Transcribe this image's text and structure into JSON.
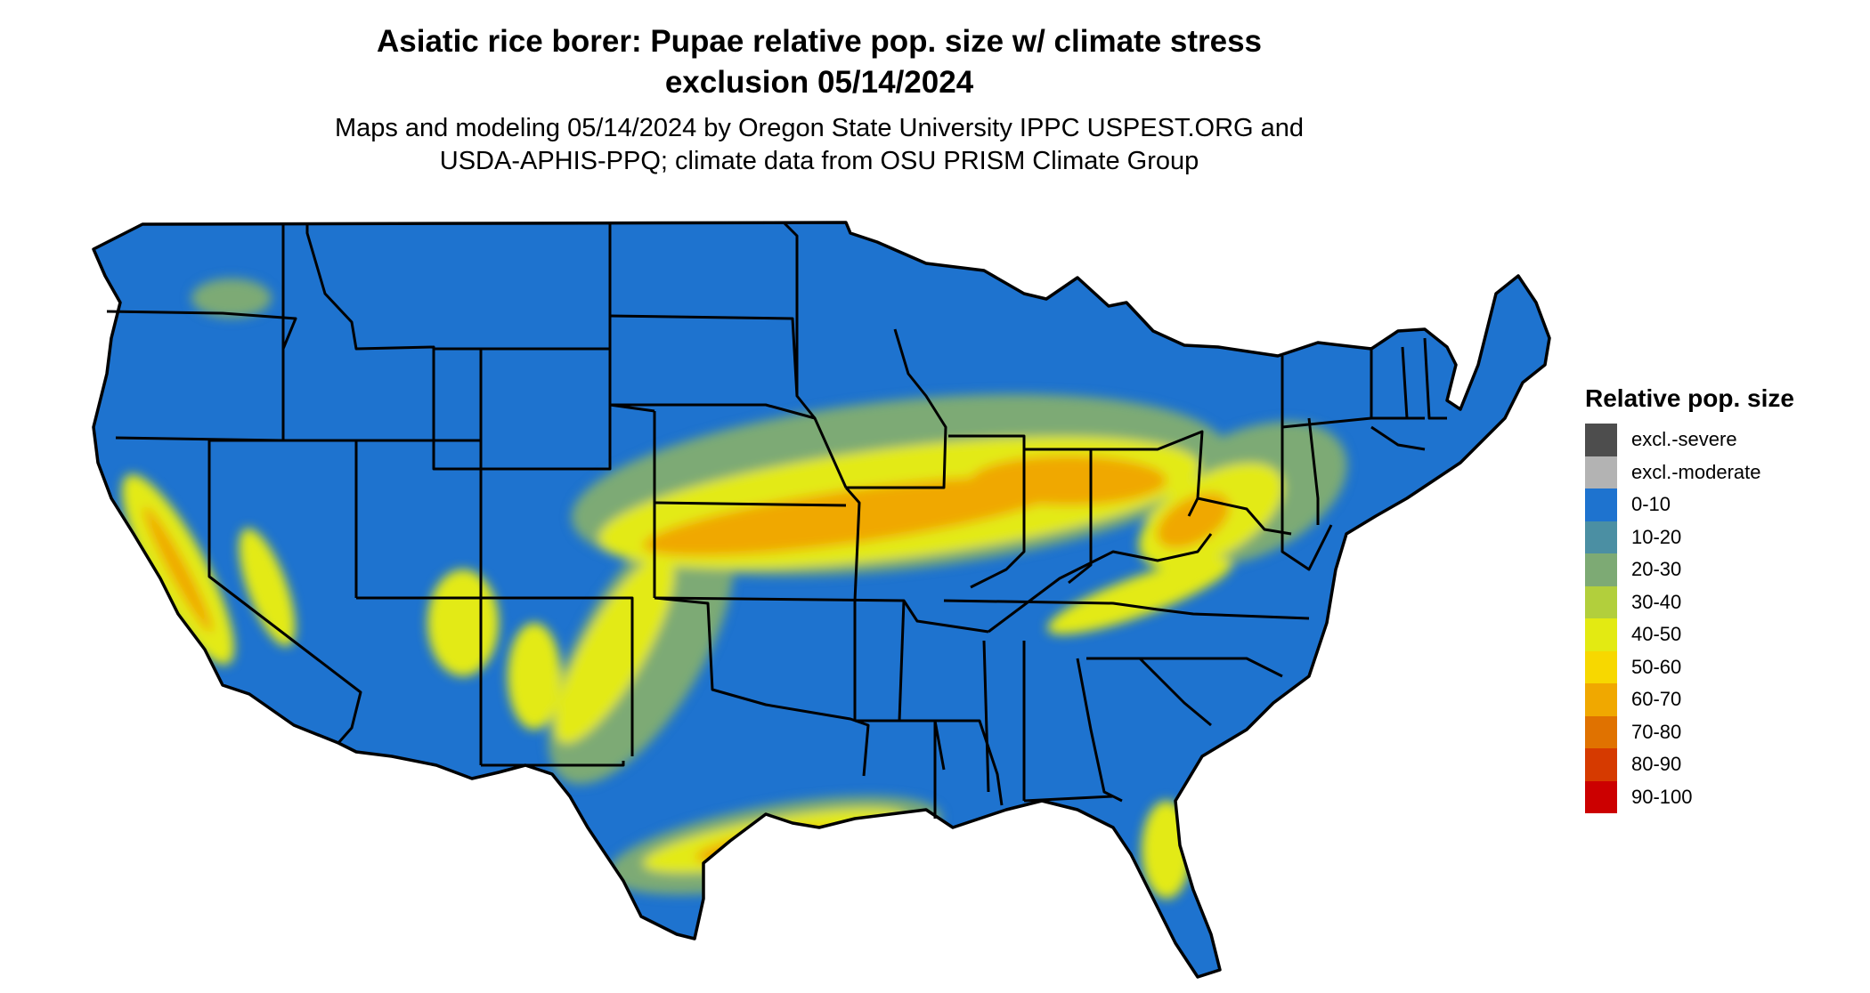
{
  "title": {
    "line1": "Asiatic rice borer: Pupae relative pop. size w/ climate stress",
    "line2": "exclusion 05/14/2024"
  },
  "subtitle": {
    "line1": "Maps and modeling 05/14/2024 by Oregon State University IPPC USPEST.ORG and",
    "line2": "USDA-APHIS-PPQ; climate data from OSU PRISM Climate Group"
  },
  "legend": {
    "title": "Relative pop. size",
    "items": [
      {
        "label": "excl.-severe",
        "color": "#4d4d4d"
      },
      {
        "label": "excl.-moderate",
        "color": "#b3b3b3"
      },
      {
        "label": "0-10",
        "color": "#1e73cf"
      },
      {
        "label": "10-20",
        "color": "#4b8fa3"
      },
      {
        "label": "20-30",
        "color": "#7daa74"
      },
      {
        "label": "30-40",
        "color": "#b2cf3c"
      },
      {
        "label": "40-50",
        "color": "#e3ea12"
      },
      {
        "label": "50-60",
        "color": "#f7d800"
      },
      {
        "label": "60-70",
        "color": "#f0a800"
      },
      {
        "label": "70-80",
        "color": "#e07200"
      },
      {
        "label": "80-90",
        "color": "#d63a00"
      },
      {
        "label": "90-100",
        "color": "#cc0000"
      }
    ]
  },
  "map": {
    "region": "Contiguous United States",
    "base_color": "#1e73cf",
    "border_color": "#000000"
  }
}
